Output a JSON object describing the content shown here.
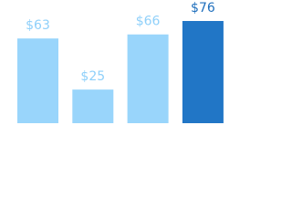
{
  "chart_data": {
    "type": "bar",
    "categories": [
      null,
      null,
      null,
      null
    ],
    "values": [
      63,
      25,
      66,
      76
    ],
    "value_labels": [
      "$63",
      "$25",
      "$66",
      "$76"
    ],
    "colors": [
      "#99d5fb",
      "#99d5fb",
      "#99d5fb",
      "#2176c6"
    ],
    "label_colors": [
      "#8fd0fa",
      "#8fd0fa",
      "#8fd0fa",
      "#1f6fbd"
    ]
  }
}
